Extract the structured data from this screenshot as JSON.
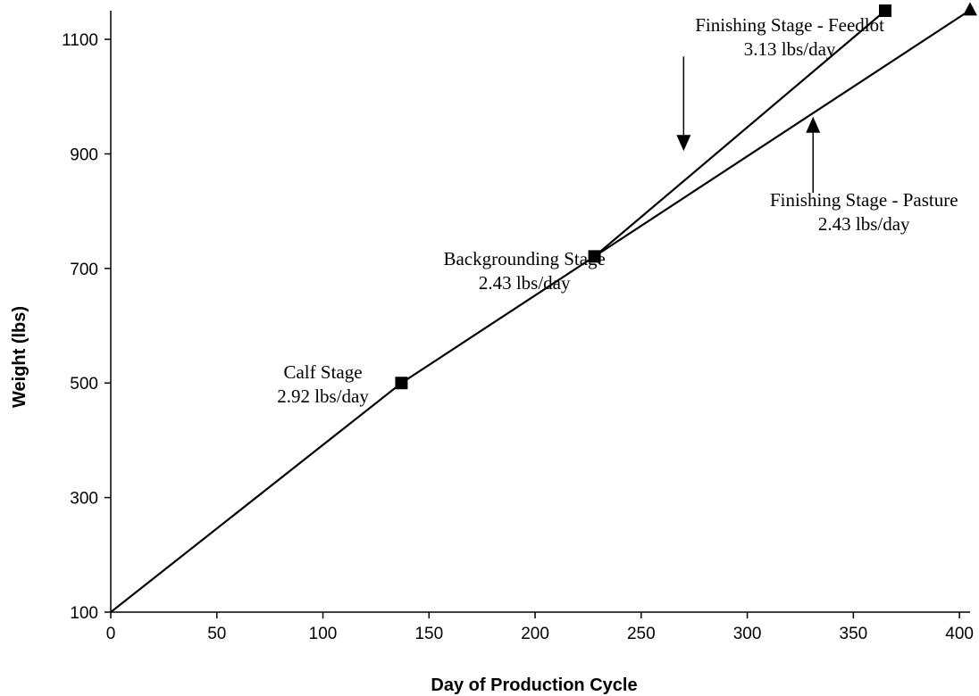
{
  "chart_data": {
    "type": "line",
    "title": "",
    "xlabel": "Day of Production Cycle",
    "ylabel": "Weight (lbs)",
    "xlim": [
      0,
      405
    ],
    "ylim": [
      100,
      1150
    ],
    "x_ticks": [
      0,
      50,
      100,
      150,
      200,
      250,
      300,
      350,
      400
    ],
    "y_ticks": [
      100,
      300,
      500,
      700,
      900,
      1100
    ],
    "grid": false,
    "legend": "none",
    "series": [
      {
        "name": "",
        "color": "#000000",
        "marker": "square",
        "points": [
          {
            "x": 0,
            "y": 100
          },
          {
            "x": 137,
            "y": 500
          },
          {
            "x": 228,
            "y": 721
          },
          {
            "x": 365,
            "y": 1150
          }
        ]
      },
      {
        "name": "",
        "color": "#000000",
        "marker": "triangle",
        "points": [
          {
            "x": 228,
            "y": 721
          },
          {
            "x": 405,
            "y": 1151
          }
        ]
      }
    ],
    "annotations": [
      {
        "id": "calf",
        "lines": [
          "Calf Stage",
          "2.92 lbs/day"
        ],
        "x": 100,
        "y": 508
      },
      {
        "id": "backgrounding",
        "lines": [
          "Backgrounding Stage",
          "2.43 lbs/day"
        ],
        "x": 195,
        "y": 706
      },
      {
        "id": "feedlot",
        "lines": [
          "Finishing Stage - Feedlot",
          "3.13 lbs/day"
        ],
        "x": 320,
        "y": 1114,
        "arrow_from": {
          "x": 270,
          "y": 1070
        },
        "arrow_to": {
          "x": 270,
          "y": 905
        }
      },
      {
        "id": "pasture",
        "lines": [
          "Finishing Stage - Pasture",
          "2.43 lbs/day"
        ],
        "x": 355,
        "y": 809,
        "arrow_from": {
          "x": 331,
          "y": 832
        },
        "arrow_to": {
          "x": 331,
          "y": 965
        }
      }
    ]
  }
}
